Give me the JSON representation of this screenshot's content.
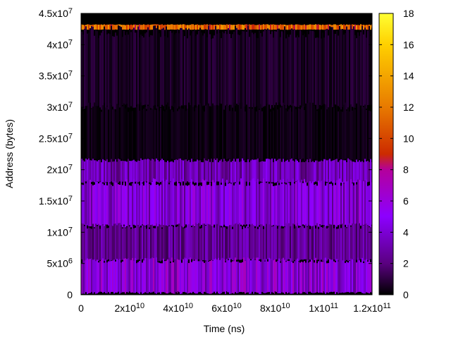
{
  "chart_data": {
    "type": "heatmap",
    "xlabel": "Time (ns)",
    "ylabel": "Address (bytes)",
    "xlim": [
      0,
      120000000000.0
    ],
    "ylim": [
      0,
      45000000.0
    ],
    "zlim": [
      0,
      18
    ],
    "x_ticks": [
      {
        "value": 0,
        "mant": "0",
        "exp": ""
      },
      {
        "value": 20000000000.0,
        "mant": "2x10",
        "exp": "10"
      },
      {
        "value": 40000000000.0,
        "mant": "4x10",
        "exp": "10"
      },
      {
        "value": 60000000000.0,
        "mant": "6x10",
        "exp": "10"
      },
      {
        "value": 80000000000.0,
        "mant": "8x10",
        "exp": "10"
      },
      {
        "value": 100000000000.0,
        "mant": "1x10",
        "exp": "11"
      },
      {
        "value": 120000000000.0,
        "mant": "1.2x10",
        "exp": "11"
      }
    ],
    "y_ticks": [
      {
        "value": 0,
        "mant": "0",
        "exp": ""
      },
      {
        "value": 5000000.0,
        "mant": "5x10",
        "exp": "6"
      },
      {
        "value": 10000000.0,
        "mant": "1x10",
        "exp": "7"
      },
      {
        "value": 15000000.0,
        "mant": "1.5x10",
        "exp": "7"
      },
      {
        "value": 20000000.0,
        "mant": "2x10",
        "exp": "7"
      },
      {
        "value": 25000000.0,
        "mant": "2.5x10",
        "exp": "7"
      },
      {
        "value": 30000000.0,
        "mant": "3x10",
        "exp": "7"
      },
      {
        "value": 35000000.0,
        "mant": "3.5x10",
        "exp": "7"
      },
      {
        "value": 40000000.0,
        "mant": "4x10",
        "exp": "7"
      },
      {
        "value": 45000000.0,
        "mant": "4.5x10",
        "exp": "7"
      }
    ],
    "colorbar_ticks": [
      "0",
      "2",
      "4",
      "6",
      "8",
      "10",
      "12",
      "14",
      "16",
      "18"
    ],
    "colormap_stops": [
      "#000000",
      "#5a0080",
      "#8c00ff",
      "#b4009c",
      "#cc2b00",
      "#e87a00",
      "#ffd000",
      "#ffff33"
    ],
    "colormap_positions": [
      0,
      0.111,
      0.278,
      0.444,
      0.5,
      0.667,
      0.889,
      1
    ],
    "address_bands": [
      {
        "y_from": 42400000.0,
        "y_to": 43200000.0,
        "level": 11
      },
      {
        "y_from": 30000000.0,
        "y_to": 42000000.0,
        "level": 0.6
      },
      {
        "y_from": 21500000.0,
        "y_to": 30000000.0,
        "level": 0.3
      },
      {
        "y_from": 18000000.0,
        "y_to": 21500000.0,
        "level": 3.2
      },
      {
        "y_from": 11000000.0,
        "y_to": 18000000.0,
        "level": 4.2
      },
      {
        "y_from": 5500000.0,
        "y_to": 11000000.0,
        "level": 2.5
      },
      {
        "y_from": 300000.0,
        "y_to": 5500000.0,
        "level": 4.8
      }
    ]
  }
}
